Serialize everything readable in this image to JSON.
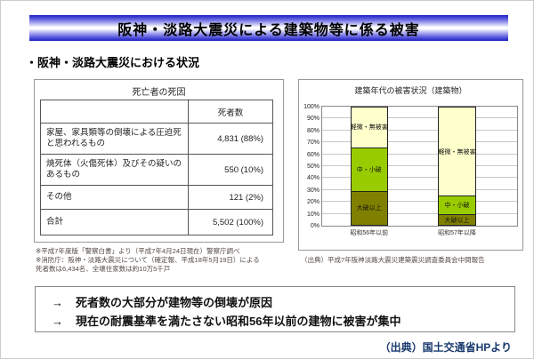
{
  "page": {
    "title": "阪神・淡路大震災による建築物等に係る被害",
    "subtitle": "・阪神・淡路大震災における状況",
    "footer_source": "（出典）国土交通省HPより"
  },
  "death_table": {
    "title": "死亡者の死因",
    "col_header": "死者数",
    "rows": [
      {
        "label": "家屋、家具類等の倒壊による圧迫死と思われるもの",
        "value": "4,831 (88%)"
      },
      {
        "label": "焼死体（火傷死体）及びその疑いのあるもの",
        "value": "550 (10%)"
      },
      {
        "label": "その他",
        "value": "121 (2%)"
      },
      {
        "label": "合計",
        "value": "5,502 (100%)"
      }
    ],
    "notes": [
      "※平成7年度版「警察白書」より（平成7年4月24日現在）警察庁調べ",
      "※消防庁：阪神・淡路大震災について（確定報、平成18年5月19日）による",
      "死者数は6,434名、全壊住家数は約10万5千戸"
    ]
  },
  "chart_data": {
    "type": "bar",
    "stacked": true,
    "title": "建築年代の被害状況（建築物）",
    "categories": [
      "昭和56年以前",
      "昭和57年以降"
    ],
    "series": [
      {
        "name": "大破以上",
        "values": [
          29,
          9
        ],
        "color": "#808000"
      },
      {
        "name": "中・小破",
        "values": [
          37,
          16
        ],
        "color": "#99CC00"
      },
      {
        "name": "軽微・無被害",
        "values": [
          34,
          75
        ],
        "color": "#FFFFCC"
      }
    ],
    "ylim": [
      0,
      100
    ],
    "ytick_step": 10,
    "ytick_suffix": "%",
    "grid": true,
    "legend_position": "labels-inside-segments",
    "caption": "（出典）平成7年阪神淡路大震災建築震災調査委員会中間報告"
  },
  "conclusions": {
    "items": [
      {
        "arrow": "→",
        "text": "死者数の大部分が建物等の倒壊が原因"
      },
      {
        "arrow": "→",
        "text": "現在の耐震基準を満たさない昭和56年以前の建物に被害が集中"
      }
    ]
  },
  "colors": {
    "title_bar_blue": "#1C1CC4",
    "footer_navy": "#1A3A6E",
    "severe_damage": "#808000",
    "medium_damage": "#99CC00",
    "light_damage": "#FFFFCC"
  }
}
